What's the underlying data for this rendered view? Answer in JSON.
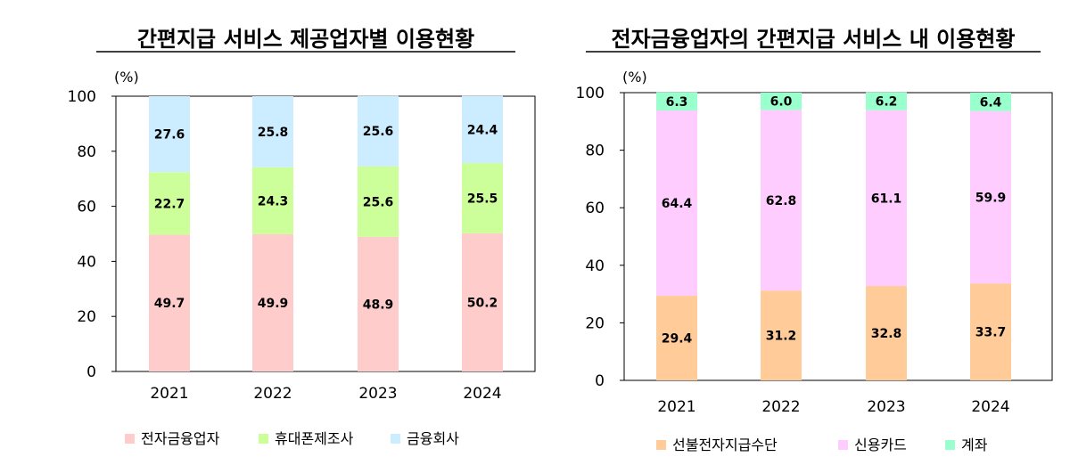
{
  "chart_data": [
    {
      "type": "bar",
      "stacked": true,
      "title": "간편지급 서비스 제공업자별 이용현황",
      "unit": "(%)",
      "categories": [
        "2021",
        "2022",
        "2023",
        "2024"
      ],
      "ylim": [
        0,
        100
      ],
      "yticks": [
        0,
        20,
        40,
        60,
        80,
        100
      ],
      "legend_position": "bottom",
      "series": [
        {
          "name": "전자금융업자",
          "color": "#FFCCCC",
          "values": [
            49.7,
            49.9,
            48.9,
            50.2
          ]
        },
        {
          "name": "휴대폰제조사",
          "color": "#CCFF99",
          "values": [
            22.7,
            24.3,
            25.6,
            25.5
          ]
        },
        {
          "name": "금융회사",
          "color": "#CCECFF",
          "values": [
            27.6,
            25.8,
            25.6,
            24.4
          ]
        }
      ]
    },
    {
      "type": "bar",
      "stacked": true,
      "title": "전자금융업자의 간편지급 서비스 내 이용현황",
      "unit": "(%)",
      "categories": [
        "2021",
        "2022",
        "2023",
        "2024"
      ],
      "ylim": [
        0,
        100
      ],
      "yticks": [
        0,
        20,
        40,
        60,
        80,
        100
      ],
      "legend_position": "bottom",
      "series": [
        {
          "name": "선불전자지급수단",
          "color": "#FFCC99",
          "values": [
            29.4,
            31.2,
            32.8,
            33.7
          ]
        },
        {
          "name": "신용카드",
          "color": "#FFCCFF",
          "values": [
            64.4,
            62.8,
            61.1,
            59.9
          ]
        },
        {
          "name": "계좌",
          "color": "#99FFCC",
          "values": [
            6.3,
            6.0,
            6.2,
            6.4
          ]
        }
      ]
    }
  ]
}
